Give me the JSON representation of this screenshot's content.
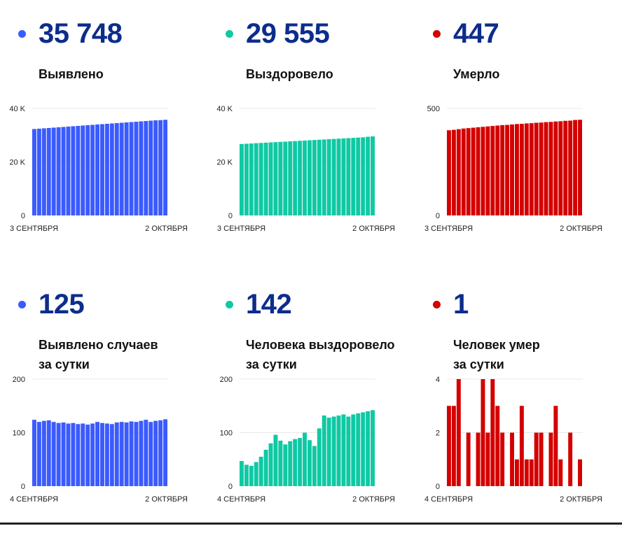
{
  "panels": [
    {
      "id": "p1",
      "big_number": "35 748",
      "label_lines": [
        "Выявлено"
      ],
      "color": "#3b5bfd",
      "chart_data": {
        "type": "bar",
        "series_name": "",
        "ylim": [
          0,
          40000
        ],
        "yticks": [
          {
            "value": 0,
            "label": "0"
          },
          {
            "value": 20000,
            "label": "20 K"
          },
          {
            "value": 40000,
            "label": "40 K"
          }
        ],
        "x_start_label": "3 СЕНТЯБРЯ",
        "x_end_label": "2 ОКТЯБРЯ",
        "values": [
          32300,
          32430,
          32560,
          32690,
          32820,
          32950,
          33080,
          33210,
          33340,
          33470,
          33600,
          33730,
          33860,
          33990,
          34120,
          34250,
          34380,
          34510,
          34640,
          34770,
          34900,
          35030,
          35160,
          35290,
          35420,
          35550,
          35623,
          35748
        ]
      }
    },
    {
      "id": "p2",
      "big_number": "29 555",
      "label_lines": [
        "Выздоровело"
      ],
      "color": "#0fc9a4",
      "chart_data": {
        "type": "bar",
        "series_name": "",
        "ylim": [
          0,
          40000
        ],
        "yticks": [
          {
            "value": 0,
            "label": "0"
          },
          {
            "value": 20000,
            "label": "20 K"
          },
          {
            "value": 40000,
            "label": "40 K"
          }
        ],
        "x_start_label": "3 СЕНТЯБРЯ",
        "x_end_label": "2 ОКТЯБРЯ",
        "values": [
          26700,
          26800,
          26900,
          27000,
          27100,
          27200,
          27300,
          27400,
          27500,
          27600,
          27700,
          27800,
          27900,
          28000,
          28100,
          28200,
          28300,
          28400,
          28500,
          28600,
          28700,
          28800,
          28900,
          29000,
          29100,
          29200,
          29413,
          29555
        ]
      }
    },
    {
      "id": "p3",
      "big_number": "447",
      "label_lines": [
        "Умерло"
      ],
      "color": "#d40000",
      "chart_data": {
        "type": "bar",
        "series_name": "",
        "ylim": [
          0,
          500
        ],
        "yticks": [
          {
            "value": 0,
            "label": "0"
          },
          {
            "value": 500,
            "label": "500"
          }
        ],
        "x_start_label": "3 СЕНТЯБРЯ",
        "x_end_label": "2 ОКТЯБРЯ",
        "values": [
          398,
          400,
          403,
          406,
          408,
          410,
          412,
          414,
          416,
          418,
          420,
          422,
          423,
          425,
          427,
          428,
          430,
          431,
          433,
          434,
          436,
          437,
          439,
          440,
          442,
          443,
          446,
          447
        ]
      }
    },
    {
      "id": "p4",
      "big_number": "125",
      "label_lines": [
        "Выявлено случаев",
        "за сутки"
      ],
      "color": "#3b5bfd",
      "chart_data": {
        "type": "bar",
        "series_name": "",
        "ylim": [
          0,
          200
        ],
        "yticks": [
          {
            "value": 0,
            "label": "0"
          },
          {
            "value": 100,
            "label": "100"
          },
          {
            "value": 200,
            "label": "200"
          }
        ],
        "x_start_label": "4 СЕНТЯБРЯ",
        "x_end_label": "2 ОКТЯБРЯ",
        "values": [
          124,
          120,
          122,
          123,
          120,
          118,
          119,
          117,
          118,
          116,
          117,
          115,
          117,
          120,
          118,
          117,
          116,
          119,
          120,
          119,
          121,
          120,
          122,
          124,
          120,
          122,
          123,
          125
        ]
      }
    },
    {
      "id": "p5",
      "big_number": "142",
      "label_lines": [
        "Человека выздоровело",
        "за сутки"
      ],
      "color": "#0fc9a4",
      "chart_data": {
        "type": "bar",
        "series_name": "",
        "ylim": [
          0,
          200
        ],
        "yticks": [
          {
            "value": 0,
            "label": "0"
          },
          {
            "value": 100,
            "label": "100"
          },
          {
            "value": 200,
            "label": "200"
          }
        ],
        "x_start_label": "4 СЕНТЯБРЯ",
        "x_end_label": "2 ОКТЯБРЯ",
        "values": [
          47,
          40,
          38,
          45,
          55,
          68,
          80,
          96,
          85,
          78,
          84,
          88,
          90,
          100,
          86,
          75,
          108,
          132,
          128,
          130,
          132,
          134,
          130,
          134,
          136,
          138,
          140,
          142
        ]
      }
    },
    {
      "id": "p6",
      "big_number": "1",
      "label_lines": [
        "Человек умер",
        "за сутки"
      ],
      "color": "#d40000",
      "chart_data": {
        "type": "bar",
        "series_name": "",
        "ylim": [
          0,
          4
        ],
        "yticks": [
          {
            "value": 0,
            "label": "0"
          },
          {
            "value": 2,
            "label": "2"
          },
          {
            "value": 4,
            "label": "4"
          }
        ],
        "x_start_label": "4 СЕНТЯБРЯ",
        "x_end_label": "2 ОКТЯБРЯ",
        "values": [
          3,
          3,
          4,
          0,
          2,
          0,
          2,
          4,
          2,
          4,
          3,
          2,
          0,
          2,
          1,
          3,
          1,
          1,
          2,
          2,
          0,
          2,
          3,
          1,
          0,
          2,
          0,
          1
        ]
      }
    }
  ]
}
